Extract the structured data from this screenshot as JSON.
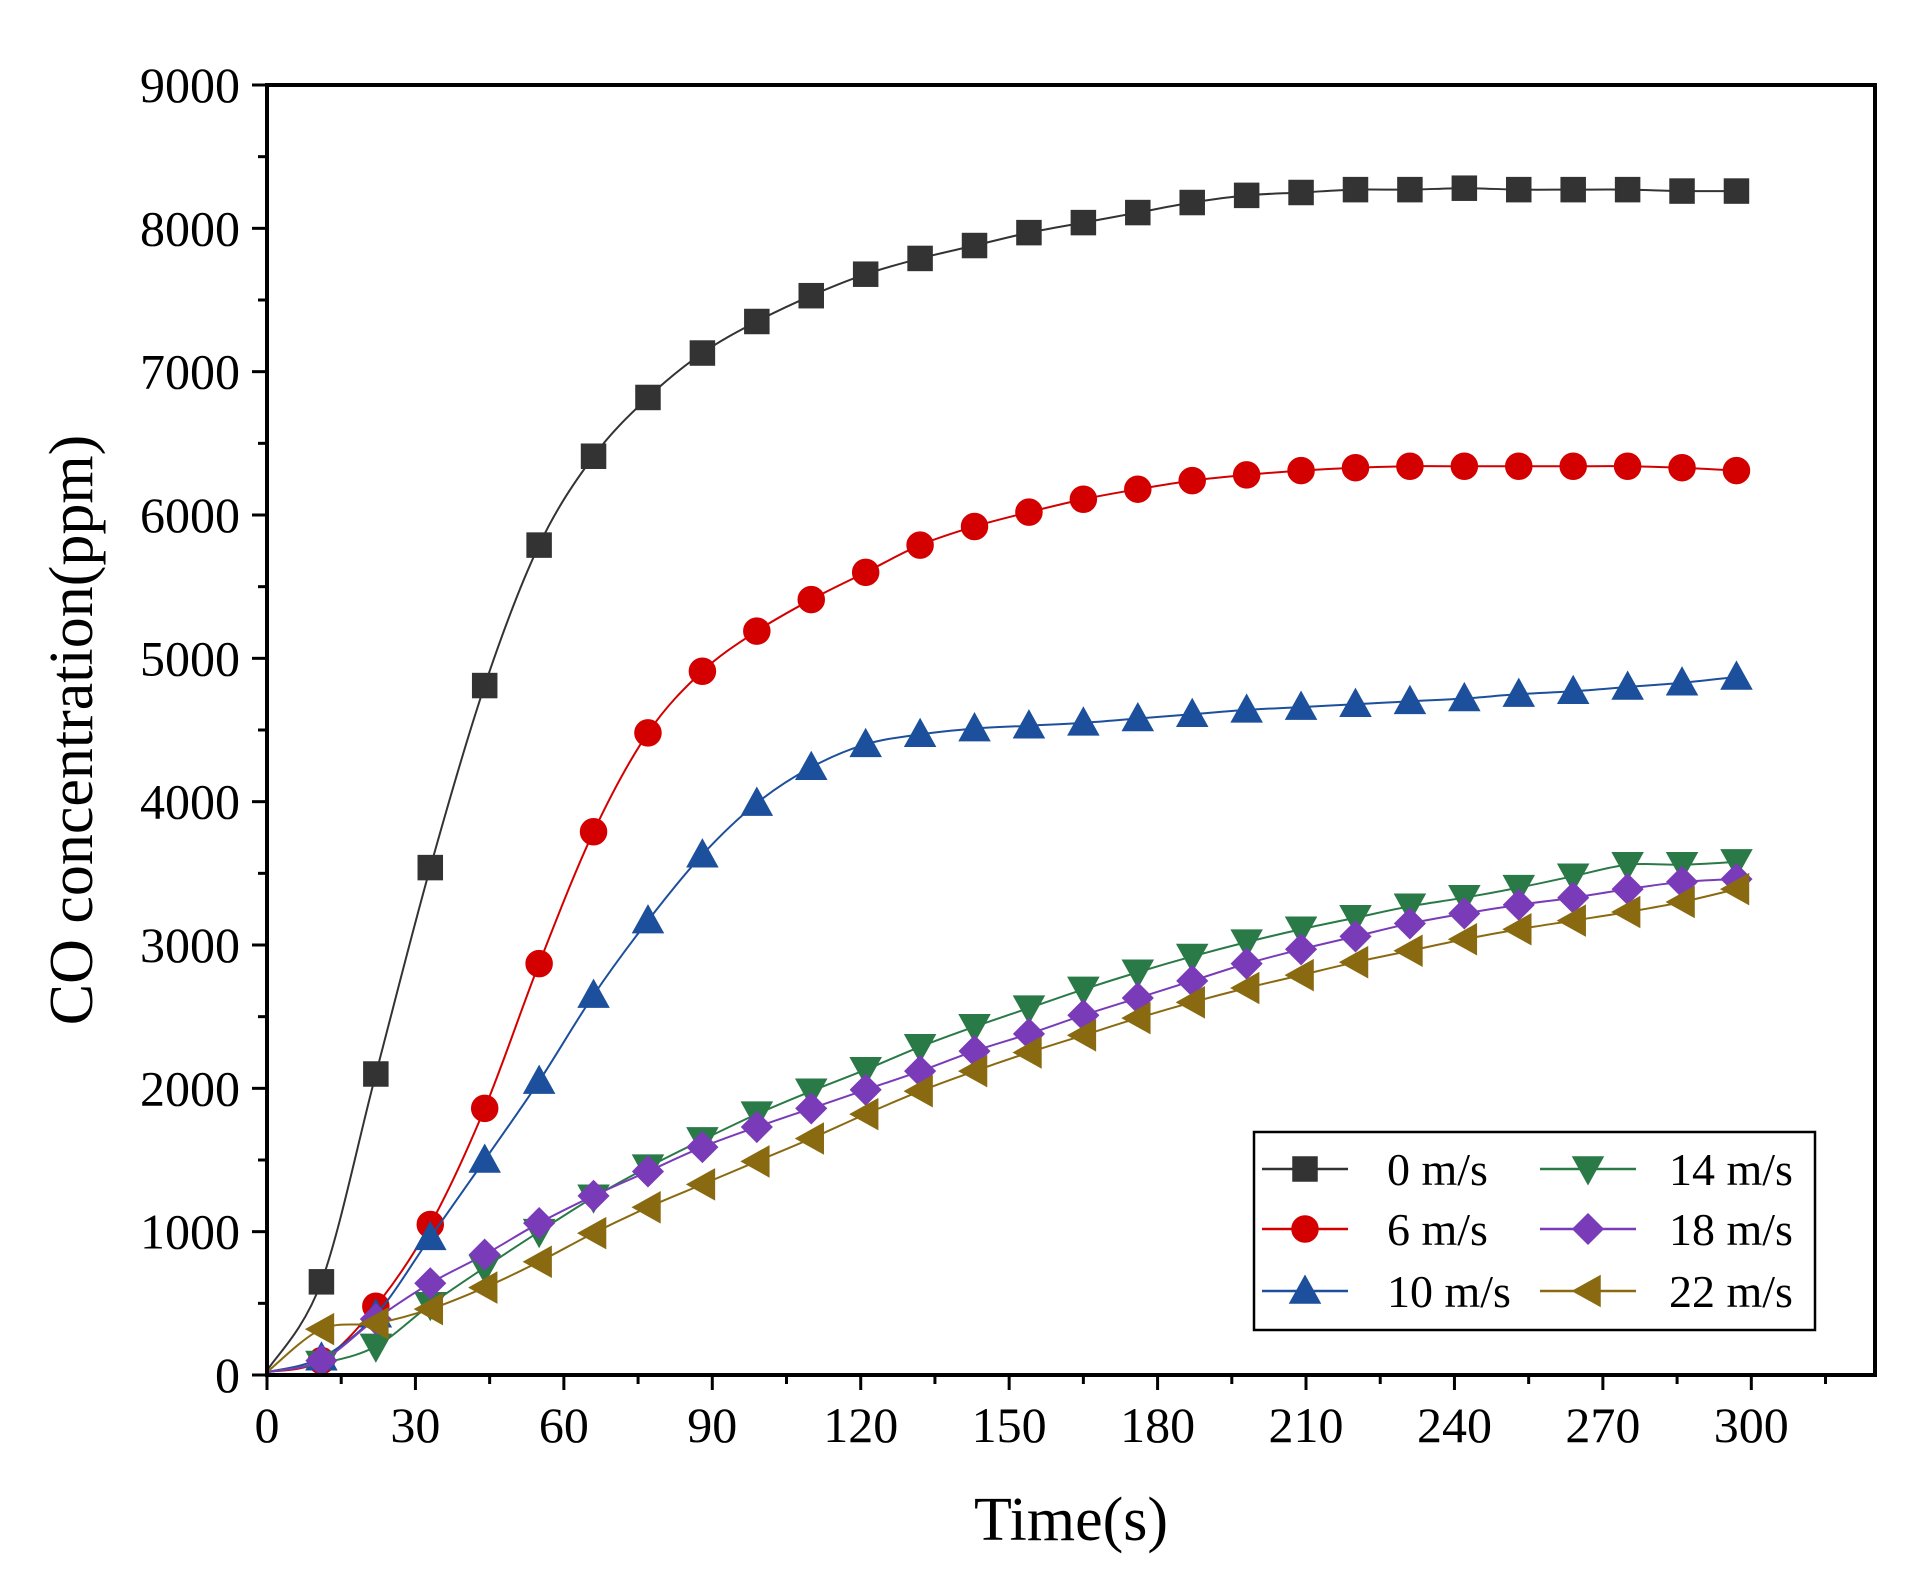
{
  "chart_data": {
    "type": "line",
    "xlabel": "Time(s)",
    "ylabel": "CO concentration(ppm)",
    "xlim": [
      0,
      325
    ],
    "ylim": [
      0,
      9000
    ],
    "xticks": [
      0,
      30,
      60,
      90,
      120,
      150,
      180,
      210,
      240,
      270,
      300
    ],
    "yticks": [
      0,
      1000,
      2000,
      3000,
      4000,
      5000,
      6000,
      7000,
      8000,
      9000
    ],
    "legend_position": "bottom-right",
    "series": [
      {
        "name": "0  m/s",
        "color": "#333333",
        "marker": "square",
        "x": [
          0,
          11,
          22,
          33,
          44,
          55,
          66,
          77,
          88,
          99,
          110,
          121,
          132,
          143,
          154,
          165,
          176,
          187,
          198,
          209,
          220,
          231,
          242,
          253,
          264,
          275,
          286,
          297
        ],
        "y": [
          30,
          650,
          2100,
          3540,
          4810,
          5790,
          6410,
          6820,
          7130,
          7350,
          7530,
          7680,
          7790,
          7880,
          7970,
          8040,
          8110,
          8180,
          8230,
          8250,
          8270,
          8270,
          8280,
          8270,
          8270,
          8270,
          8260,
          8260
        ]
      },
      {
        "name": "6 m/s",
        "color": "#d40000",
        "marker": "circle",
        "x": [
          0,
          11,
          22,
          33,
          44,
          55,
          66,
          77,
          88,
          99,
          110,
          121,
          132,
          143,
          154,
          165,
          176,
          187,
          198,
          209,
          220,
          231,
          242,
          253,
          264,
          275,
          286,
          297
        ],
        "y": [
          20,
          100,
          480,
          1050,
          1860,
          2870,
          3790,
          4480,
          4910,
          5190,
          5410,
          5600,
          5790,
          5920,
          6020,
          6110,
          6180,
          6240,
          6280,
          6310,
          6330,
          6340,
          6340,
          6340,
          6340,
          6340,
          6330,
          6310
        ]
      },
      {
        "name": "10 m/s",
        "color": "#1c4f9c",
        "marker": "triangle-up",
        "x": [
          0,
          11,
          22,
          33,
          44,
          55,
          66,
          77,
          88,
          99,
          110,
          121,
          132,
          143,
          154,
          165,
          176,
          187,
          198,
          209,
          220,
          231,
          242,
          253,
          264,
          275,
          286,
          297
        ],
        "y": [
          20,
          120,
          420,
          960,
          1500,
          2050,
          2650,
          3170,
          3630,
          3990,
          4240,
          4400,
          4470,
          4510,
          4530,
          4550,
          4580,
          4610,
          4640,
          4660,
          4680,
          4700,
          4720,
          4750,
          4770,
          4800,
          4830,
          4870
        ]
      },
      {
        "name": "14 m/s",
        "color": "#2a7a48",
        "marker": "triangle-down",
        "x": [
          0,
          11,
          22,
          33,
          44,
          55,
          66,
          77,
          88,
          99,
          110,
          121,
          132,
          143,
          154,
          165,
          176,
          187,
          198,
          209,
          220,
          231,
          242,
          253,
          264,
          275,
          286,
          297
        ],
        "y": [
          20,
          80,
          200,
          490,
          750,
          1000,
          1240,
          1450,
          1640,
          1820,
          1980,
          2130,
          2290,
          2430,
          2560,
          2690,
          2810,
          2920,
          3020,
          3110,
          3190,
          3270,
          3330,
          3400,
          3480,
          3560,
          3560,
          3580
        ]
      },
      {
        "name": "18 m/s",
        "color": "#7a3bb8",
        "marker": "diamond",
        "x": [
          0,
          11,
          22,
          33,
          44,
          55,
          66,
          77,
          88,
          99,
          110,
          121,
          132,
          143,
          154,
          165,
          176,
          187,
          198,
          209,
          220,
          231,
          242,
          253,
          264,
          275,
          286,
          297
        ],
        "y": [
          20,
          100,
          390,
          640,
          840,
          1060,
          1250,
          1420,
          1590,
          1730,
          1860,
          1990,
          2120,
          2260,
          2380,
          2510,
          2630,
          2750,
          2870,
          2970,
          3060,
          3150,
          3220,
          3280,
          3330,
          3390,
          3440,
          3460
        ]
      },
      {
        "name": "22 m/s",
        "color": "#8a6a10",
        "marker": "triangle-left",
        "x": [
          0,
          11,
          22,
          33,
          44,
          55,
          66,
          77,
          88,
          99,
          110,
          121,
          132,
          143,
          154,
          165,
          176,
          187,
          198,
          209,
          220,
          231,
          242,
          253,
          264,
          275,
          286,
          297
        ],
        "y": [
          20,
          320,
          360,
          460,
          610,
          790,
          990,
          1170,
          1330,
          1490,
          1650,
          1820,
          1980,
          2120,
          2250,
          2370,
          2490,
          2600,
          2700,
          2790,
          2880,
          2960,
          3040,
          3110,
          3170,
          3230,
          3300,
          3390
        ]
      }
    ]
  }
}
